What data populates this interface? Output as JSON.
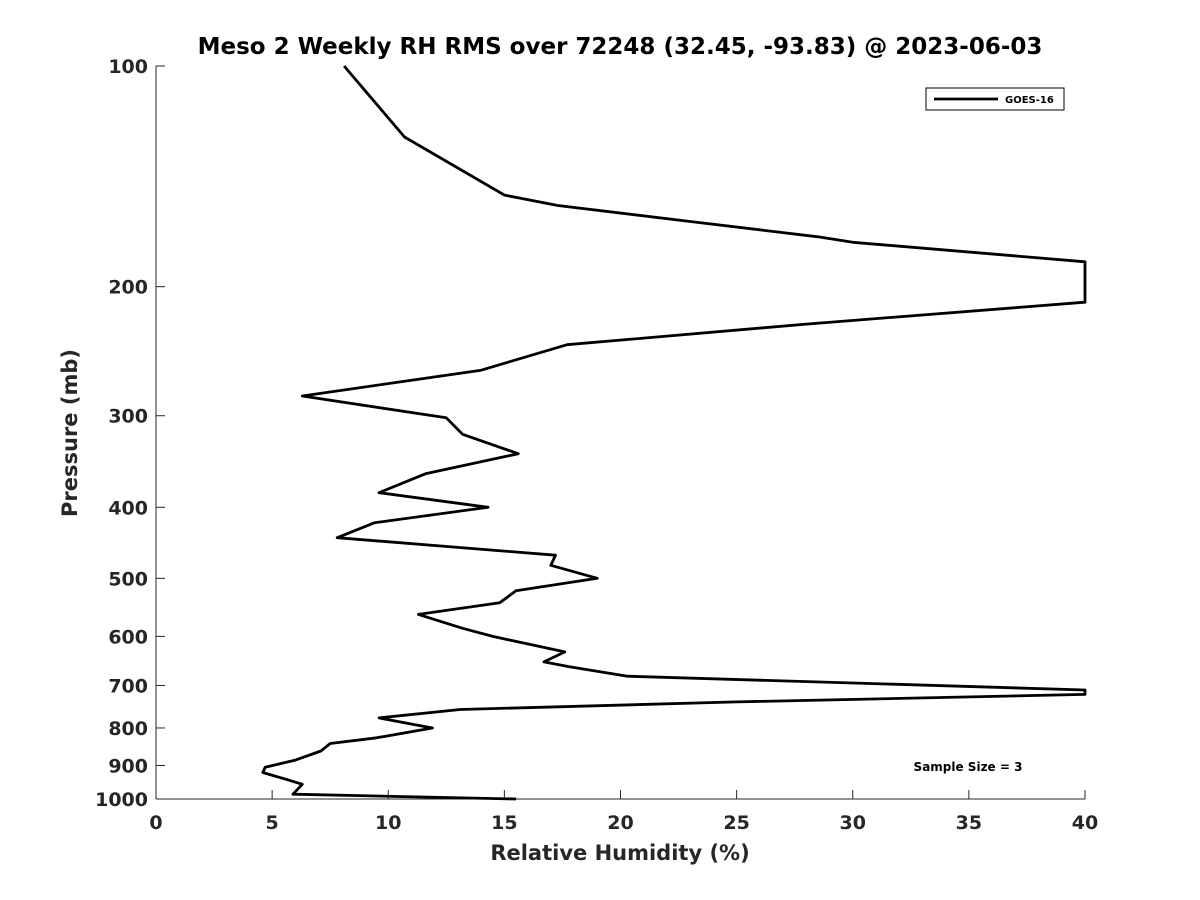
{
  "chart_data": {
    "type": "line",
    "title": "Meso 2 Weekly RH RMS over 72248 (32.45, -93.83) @ 2023-06-03",
    "xlabel": "Relative Humidity (%)",
    "ylabel": "Pressure (mb)",
    "xlim": [
      0,
      40
    ],
    "ylim": [
      100,
      1000
    ],
    "y_scale": "log",
    "y_reversed": true,
    "x_ticks": [
      0,
      5,
      10,
      15,
      20,
      25,
      30,
      35,
      40
    ],
    "x_tick_labels": [
      "0",
      "5",
      "10",
      "15",
      "20",
      "25",
      "30",
      "35",
      "40"
    ],
    "y_ticks": [
      100,
      200,
      300,
      400,
      500,
      600,
      700,
      800,
      900,
      1000
    ],
    "y_tick_labels": [
      "100",
      "200",
      "300",
      "400",
      "500",
      "600",
      "700",
      "800",
      "900",
      "1000"
    ],
    "grid": false,
    "legend_position": "top-right",
    "annotation": "Sample Size = 3",
    "series": [
      {
        "name": "GOES-16",
        "color": "#000000",
        "points": [
          [
            8.1,
            100
          ],
          [
            10.7,
            125
          ],
          [
            15.0,
            150
          ],
          [
            17.3,
            155
          ],
          [
            23.0,
            163
          ],
          [
            28.5,
            171
          ],
          [
            30.0,
            174
          ],
          [
            40.0,
            185
          ],
          [
            40.0,
            210
          ],
          [
            28.0,
            225
          ],
          [
            17.7,
            240
          ],
          [
            14.0,
            260
          ],
          [
            6.3,
            282
          ],
          [
            12.5,
            302
          ],
          [
            13.2,
            318
          ],
          [
            15.6,
            338
          ],
          [
            11.6,
            360
          ],
          [
            9.6,
            382
          ],
          [
            14.3,
            400
          ],
          [
            9.4,
            420
          ],
          [
            7.8,
            440
          ],
          [
            17.2,
            465
          ],
          [
            17.0,
            480
          ],
          [
            19.0,
            500
          ],
          [
            15.5,
            520
          ],
          [
            14.8,
            540
          ],
          [
            11.3,
            560
          ],
          [
            13.2,
            585
          ],
          [
            14.5,
            600
          ],
          [
            17.6,
            630
          ],
          [
            16.7,
            650
          ],
          [
            17.8,
            660
          ],
          [
            20.3,
            680
          ],
          [
            40.0,
            710
          ],
          [
            40.0,
            720
          ],
          [
            25.0,
            737
          ],
          [
            13.1,
            755
          ],
          [
            9.6,
            775
          ],
          [
            11.9,
            800
          ],
          [
            9.5,
            825
          ],
          [
            7.5,
            840
          ],
          [
            7.1,
            860
          ],
          [
            6.0,
            885
          ],
          [
            4.7,
            905
          ],
          [
            4.6,
            920
          ],
          [
            5.6,
            940
          ],
          [
            6.3,
            955
          ],
          [
            5.9,
            985
          ],
          [
            15.5,
            1000
          ]
        ]
      }
    ]
  }
}
